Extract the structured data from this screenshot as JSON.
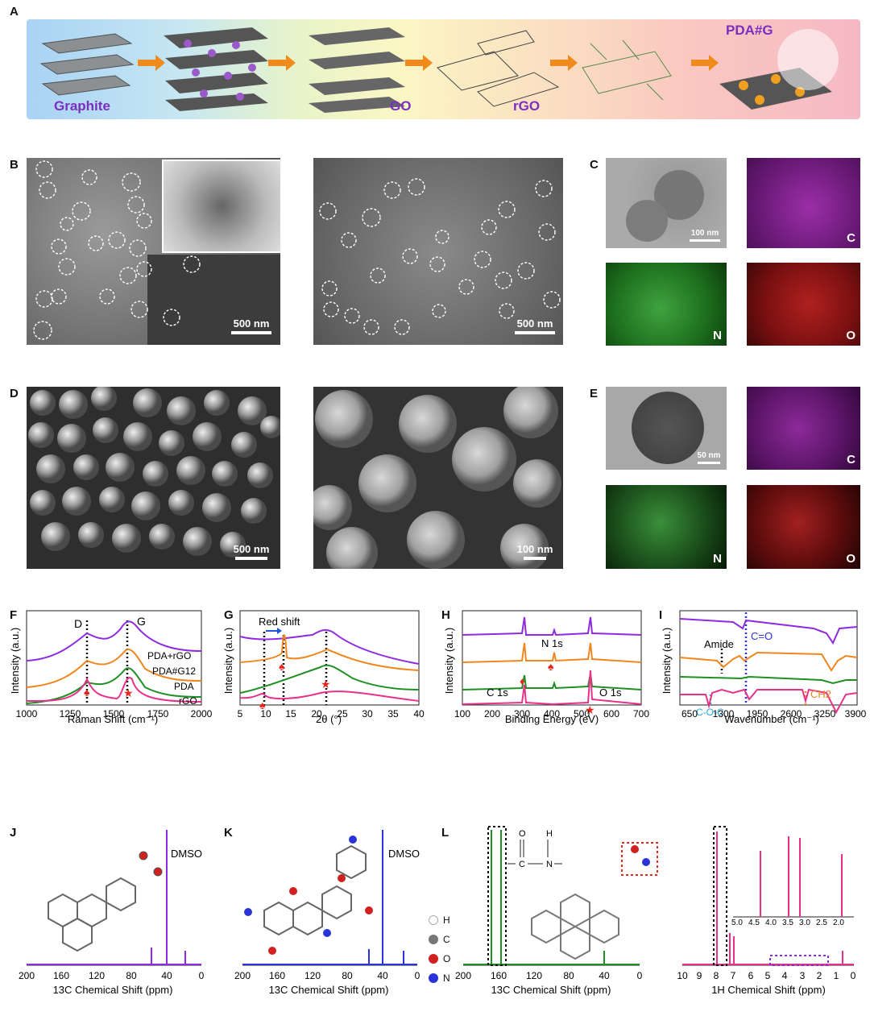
{
  "panels": {
    "A": {
      "letter": "A",
      "labels": [
        "Graphite",
        "GO",
        "rGO",
        "PDA#G"
      ]
    },
    "B": {
      "letter": "B",
      "scale_left": "500 nm",
      "scale_right": "500 nm"
    },
    "C": {
      "letter": "C",
      "scale": "100 nm",
      "maps": [
        "C",
        "N",
        "O"
      ]
    },
    "D": {
      "letter": "D",
      "scale_left": "500 nm",
      "scale_right": "100 nm"
    },
    "E": {
      "letter": "E",
      "scale": "50 nm",
      "maps": [
        "C",
        "N",
        "O"
      ]
    },
    "F": {
      "letter": "F",
      "ylabel": "Intensity (a.u.)",
      "xlabel": "Raman Shift (cm⁻¹)",
      "xticks": [
        "1000",
        "1250",
        "1500",
        "1750",
        "2000"
      ],
      "peak_D": "D",
      "peak_G": "G",
      "series": [
        "PDA+rGO",
        "PDA#G12",
        "PDA",
        "rGO"
      ]
    },
    "G": {
      "letter": "G",
      "ylabel": "Intensity (a.u.)",
      "xlabel": "2θ (°)",
      "xticks": [
        "5",
        "10",
        "15",
        "20",
        "25",
        "30",
        "35",
        "40"
      ],
      "annotation": "Red shift"
    },
    "H": {
      "letter": "H",
      "ylabel": "Intensity (a.u.)",
      "xlabel": "Binding Energy (eV)",
      "xticks": [
        "100",
        "200",
        "300",
        "400",
        "500",
        "600",
        "700"
      ],
      "peaks": [
        "C 1s",
        "N 1s",
        "O 1s"
      ]
    },
    "I": {
      "letter": "I",
      "ylabel": "Intensity (a.u.)",
      "xlabel": "Wavenumber (cm⁻¹)",
      "xticks": [
        "650",
        "1300",
        "1950",
        "2600",
        "3250",
        "3900"
      ],
      "annotations": [
        "Amide",
        "C=O",
        "CH2",
        "C-O-C"
      ]
    },
    "J": {
      "letter": "J",
      "xlabel": "13C Chemical Shift (ppm)",
      "solvent": "DMSO",
      "xticks": [
        "200",
        "160",
        "120",
        "80",
        "40",
        "0"
      ]
    },
    "K": {
      "letter": "K",
      "xlabel": "13C Chemical Shift (ppm)",
      "solvent": "DMSO",
      "xticks": [
        "200",
        "160",
        "120",
        "80",
        "40",
        "0"
      ]
    },
    "L": {
      "letter": "L",
      "xlabel_left": "13C Chemical Shift (ppm)",
      "xlabel_right": "1H Chemical Shift (ppm)",
      "xticks_left": [
        "200",
        "160",
        "120",
        "80",
        "40",
        "0"
      ],
      "xticks_right": [
        "10",
        "9",
        "8",
        "7",
        "6",
        "5",
        "4",
        "3",
        "2",
        "1",
        "0"
      ],
      "inset_ticks": [
        "5.0",
        "4.5",
        "4.0",
        "3.5",
        "3.0",
        "2.5",
        "2.0"
      ],
      "legend": [
        "H",
        "C",
        "O",
        "N"
      ],
      "amide_group": {
        "o": "O",
        "h": "H",
        "c": "C",
        "n": "N"
      }
    }
  },
  "colors": {
    "purple": "#8e2be0",
    "orange": "#f0861e",
    "green": "#1e8f23",
    "pink": "#e8318a",
    "blue": "#2a33d8",
    "red": "#e8261c"
  },
  "chart_data": [
    {
      "type": "line",
      "id": "F",
      "xlim": [
        1000,
        2000
      ],
      "xlabel": "Raman Shift (cm⁻¹)",
      "ylabel": "Intensity (a.u.)",
      "series": [
        {
          "name": "PDA+rGO"
        },
        {
          "name": "PDA#G12"
        },
        {
          "name": "PDA"
        },
        {
          "name": "rGO"
        }
      ],
      "markers": {
        "D": 1350,
        "G": 1580
      }
    },
    {
      "type": "line",
      "id": "G",
      "xlim": [
        5,
        40
      ],
      "xlabel": "2θ (°)",
      "ylabel": "Intensity (a.u.)",
      "markers": [
        8.5,
        12,
        21
      ]
    },
    {
      "type": "line",
      "id": "H",
      "xlim": [
        100,
        700
      ],
      "xlabel": "Binding Energy (eV)",
      "ylabel": "Intensity (a.u.)",
      "peaks": {
        "C 1s": 285,
        "N 1s": 400,
        "O 1s": 532
      }
    },
    {
      "type": "line",
      "id": "I",
      "xlim": [
        650,
        3900
      ],
      "xlabel": "Wavenumber (cm⁻¹)",
      "ylabel": "Intensity (a.u.)"
    },
    {
      "type": "bar",
      "id": "J",
      "xlim": [
        200,
        0
      ],
      "xlabel": "13C Chemical Shift (ppm)"
    },
    {
      "type": "bar",
      "id": "K",
      "xlim": [
        200,
        0
      ],
      "xlabel": "13C Chemical Shift (ppm)"
    },
    {
      "type": "bar",
      "id": "L",
      "xlim": [
        200,
        0
      ],
      "xlabel": "13C Chemical Shift (ppm)"
    }
  ]
}
